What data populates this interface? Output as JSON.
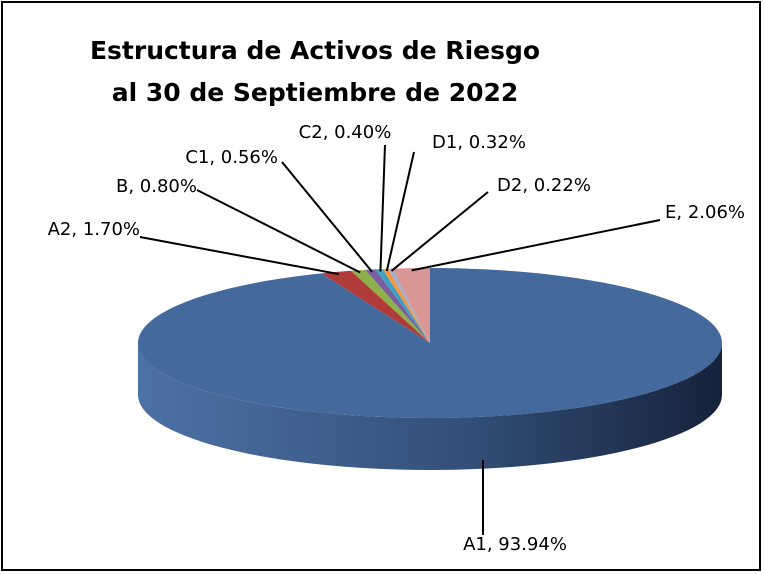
{
  "chart_data": {
    "type": "pie",
    "title": [
      "Estructura de Activos de Riesgo",
      "al 30 de Septiembre de 2022"
    ],
    "values": [
      93.94,
      1.7,
      0.8,
      0.56,
      0.4,
      0.32,
      0.22,
      2.06
    ],
    "value_labels": [
      "A1, 93.94%",
      "A2, 1.70%",
      "B, 0.80%",
      "C1, 0.56%",
      "C2, 0.40%",
      "D1, 0.32%",
      "D2, 0.22%",
      "E, 2.06%"
    ],
    "colors": [
      "#44699c",
      "#b03c3a",
      "#8db04a",
      "#7a5fa0",
      "#3fa0c0",
      "#f79646",
      "#95b3d7",
      "#d99694"
    ]
  }
}
